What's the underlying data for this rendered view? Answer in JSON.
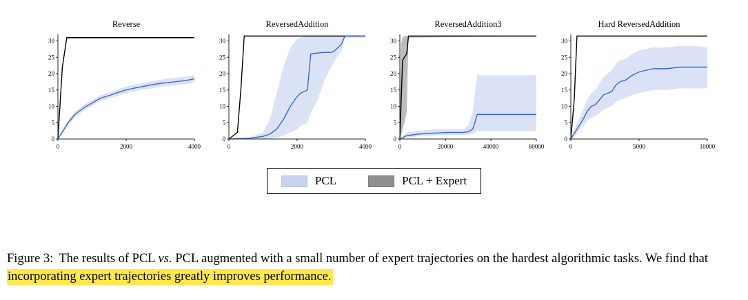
{
  "caption": {
    "prefix": "Figure 3:",
    "body1": "The results of PCL ",
    "vs": "vs.",
    "body2": " PCL augmented with a small number of expert trajectories on the hardest algorithmic tasks. We find that ",
    "highlight": "incorporating expert trajectories greatly improves performance."
  },
  "legend": {
    "items": [
      {
        "label": "PCL",
        "color": "#c8d3ef",
        "border": "#b3c1e6"
      },
      {
        "label": "PCL + Expert",
        "color": "#8f8f8f",
        "border": "#7a7a7a"
      }
    ]
  },
  "colors": {
    "pcl_line": "#3a66c8",
    "pcl_band": "#c8d3ef",
    "expert_line": "#000000",
    "expert_band": "#9a9a9a",
    "axis": "#222222",
    "highlight": "#ffe84d"
  },
  "chart_data": [
    {
      "type": "line",
      "title": "Reverse",
      "xlim": [
        0,
        4000
      ],
      "ylim": [
        0,
        32
      ],
      "xticks": [
        0,
        2000,
        4000
      ],
      "yticks": [
        0,
        5,
        10,
        15,
        20,
        25,
        30
      ],
      "series": [
        {
          "name": "PCL + Expert",
          "color": "#000000",
          "x": [
            0,
            130,
            260,
            4000
          ],
          "y": [
            0,
            22,
            31,
            31
          ]
        },
        {
          "name": "PCL",
          "color": "#3a66c8",
          "band_color": "#c8d3ef",
          "x": [
            0,
            150,
            300,
            500,
            750,
            1000,
            1250,
            1500,
            1750,
            2000,
            2250,
            2500,
            2750,
            3000,
            3250,
            3500,
            3750,
            4000
          ],
          "y": [
            0,
            2.5,
            5,
            7.5,
            9.5,
            11,
            12.5,
            13.3,
            14.2,
            15,
            15.6,
            16.1,
            16.6,
            17,
            17.3,
            17.6,
            17.9,
            18.4
          ],
          "y_lo": [
            0,
            1.8,
            4.2,
            6.6,
            8.6,
            10.1,
            11.6,
            12.4,
            13.2,
            14,
            14.6,
            15.1,
            15.5,
            15.9,
            16.2,
            16.5,
            16.8,
            17.2
          ],
          "y_hi": [
            0,
            3.2,
            5.8,
            8.4,
            10.4,
            12,
            13.4,
            14.2,
            15.2,
            16,
            16.6,
            17.1,
            17.7,
            18.1,
            18.5,
            18.8,
            19.1,
            19.6
          ]
        }
      ]
    },
    {
      "type": "line",
      "title": "ReversedAddition",
      "xlim": [
        0,
        4000
      ],
      "ylim": [
        0,
        32
      ],
      "xticks": [
        0,
        2000,
        4000
      ],
      "yticks": [
        0,
        5,
        10,
        15,
        20,
        25,
        30
      ],
      "series": [
        {
          "name": "PCL + Expert",
          "color": "#000000",
          "x": [
            0,
            250,
            350,
            450,
            4000
          ],
          "y": [
            0,
            2,
            15,
            31.5,
            31.5
          ]
        },
        {
          "name": "PCL",
          "color": "#3a66c8",
          "band_color": "#c8d3ef",
          "x": [
            0,
            600,
            1000,
            1200,
            1400,
            1600,
            1800,
            2000,
            2100,
            2300,
            2400,
            2600,
            2800,
            3000,
            3100,
            3300,
            3400,
            4000
          ],
          "y": [
            0,
            0.2,
            0.8,
            1.5,
            3,
            6,
            10,
            13,
            14,
            15,
            26,
            26.3,
            26.5,
            26.5,
            27,
            29,
            31.5,
            31.5
          ],
          "y_lo": [
            0,
            0,
            0,
            0,
            0.5,
            1,
            2,
            3,
            4,
            5,
            8,
            12,
            18,
            22,
            24,
            27,
            31,
            31
          ],
          "y_hi": [
            0,
            0.5,
            2,
            6,
            14,
            22,
            28,
            30.5,
            31,
            31.5,
            31.5,
            31.5,
            31.5,
            31.5,
            31.5,
            31.5,
            31.5,
            31.5
          ]
        }
      ]
    },
    {
      "type": "line",
      "title": "ReversedAddition3",
      "xlim": [
        0,
        60000
      ],
      "ylim": [
        0,
        32
      ],
      "xticks": [
        0,
        20000,
        40000,
        60000
      ],
      "yticks": [
        0,
        5,
        10,
        15,
        20,
        25,
        30
      ],
      "series": [
        {
          "name": "PCL + Expert",
          "color": "#000000",
          "band_color": "#9a9a9a",
          "x": [
            0,
            500,
            1200,
            2000,
            3000,
            3800,
            60000
          ],
          "y": [
            0,
            10,
            24,
            25,
            26,
            31.5,
            31.5
          ],
          "y_lo": [
            0,
            1,
            3,
            5,
            8,
            31,
            31.5
          ],
          "y_hi": [
            0,
            29,
            31,
            31.5,
            31.5,
            31.5,
            31.5
          ]
        },
        {
          "name": "PCL",
          "color": "#3a66c8",
          "band_color": "#c8d3ef",
          "x": [
            0,
            3000,
            8000,
            15000,
            22000,
            28000,
            30000,
            32000,
            33000,
            34000,
            36000,
            40000,
            50000,
            60000
          ],
          "y": [
            0,
            1,
            1.5,
            1.8,
            2,
            2,
            2.2,
            3,
            5,
            7.5,
            7.5,
            7.5,
            7.5,
            7.5
          ],
          "y_lo": [
            0,
            0.5,
            0.8,
            1,
            1.2,
            1.2,
            1.3,
            1.5,
            2,
            2.5,
            2.5,
            2.5,
            2.5,
            2.5
          ],
          "y_hi": [
            0,
            2,
            2.5,
            3,
            3,
            3,
            4,
            8,
            14,
            19.5,
            19.5,
            19.5,
            19.5,
            19.5
          ]
        }
      ]
    },
    {
      "type": "line",
      "title": "Hard ReversedAddition",
      "xlim": [
        0,
        10000
      ],
      "ylim": [
        0,
        32
      ],
      "xticks": [
        0,
        5000,
        10000
      ],
      "yticks": [
        0,
        5,
        10,
        15,
        20,
        25,
        30
      ],
      "series": [
        {
          "name": "PCL + Expert",
          "color": "#000000",
          "x": [
            0,
            250,
            450,
            10000
          ],
          "y": [
            0,
            12,
            31.5,
            31.5
          ]
        },
        {
          "name": "PCL",
          "color": "#3a66c8",
          "band_color": "#c8d3ef",
          "x": [
            0,
            300,
            600,
            900,
            1200,
            1500,
            1800,
            2100,
            2400,
            2700,
            3000,
            3300,
            3600,
            4000,
            4500,
            5000,
            5500,
            6000,
            7000,
            8000,
            9000,
            10000
          ],
          "y": [
            0,
            2,
            4,
            6,
            8.5,
            10,
            10.5,
            12,
            13.5,
            14,
            14.5,
            16.5,
            17.5,
            18,
            19.5,
            20.5,
            21,
            21.5,
            21.5,
            22,
            22,
            22
          ],
          "y_lo": [
            0,
            1,
            2.5,
            4,
            5.5,
            6.5,
            7,
            8,
            9,
            9.5,
            10,
            11.5,
            12,
            12.5,
            13.5,
            14,
            14.5,
            15,
            15,
            15.5,
            15.5,
            15.5
          ],
          "y_hi": [
            0,
            3.5,
            6,
            9,
            12,
            14,
            15,
            17,
            19,
            20,
            21,
            23,
            24,
            24.5,
            26,
            27,
            27.5,
            28,
            28,
            28.5,
            28.5,
            28
          ]
        }
      ]
    }
  ]
}
